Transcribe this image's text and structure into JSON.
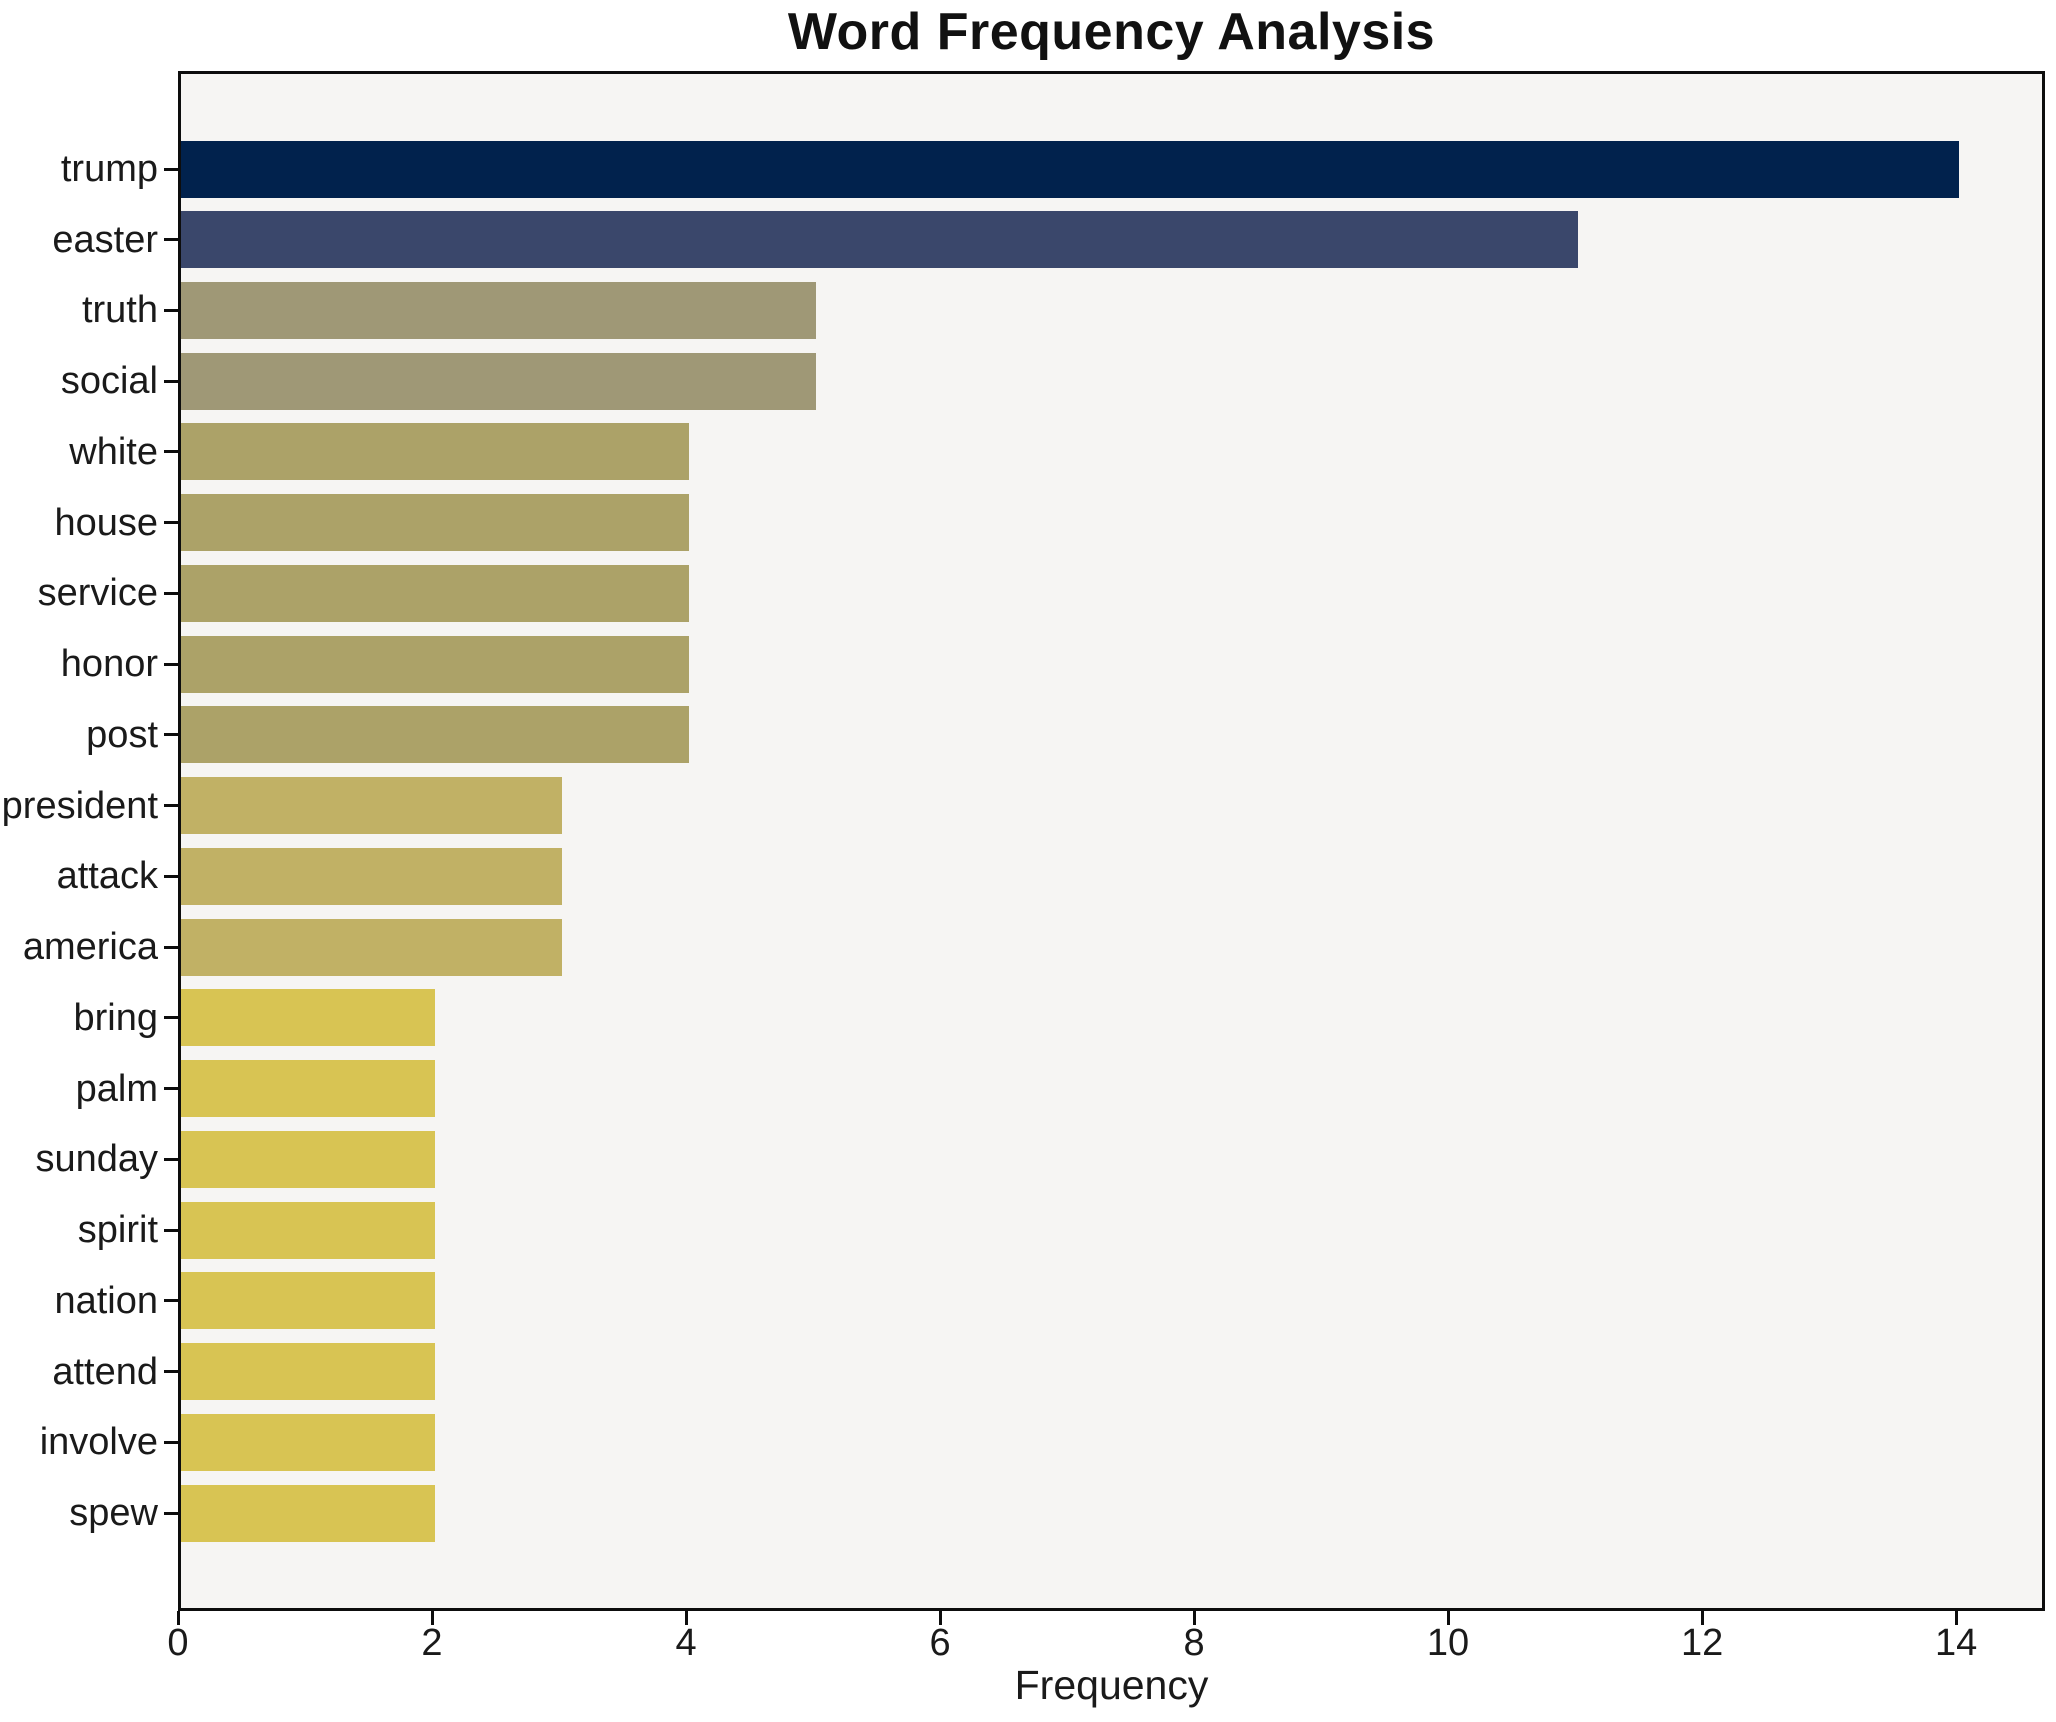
{
  "title": "Word Frequency Analysis",
  "chart_data": {
    "type": "bar",
    "orientation": "horizontal",
    "title": "Word Frequency Analysis",
    "xlabel": "Frequency",
    "ylabel": "",
    "categories": [
      "trump",
      "easter",
      "truth",
      "social",
      "white",
      "house",
      "service",
      "honor",
      "post",
      "president",
      "attack",
      "america",
      "bring",
      "palm",
      "sunday",
      "spirit",
      "nation",
      "attend",
      "involve",
      "spew"
    ],
    "values": [
      14,
      11,
      5,
      5,
      4,
      4,
      4,
      4,
      4,
      3,
      3,
      3,
      2,
      2,
      2,
      2,
      2,
      2,
      2,
      2
    ],
    "bar_colors": [
      "#01224d",
      "#3a476b",
      "#9f9876",
      "#9f9876",
      "#aca268",
      "#aca268",
      "#aca268",
      "#aca268",
      "#aca268",
      "#c1b165",
      "#c1b165",
      "#c1b165",
      "#d8c453",
      "#d8c453",
      "#d8c453",
      "#d8c453",
      "#d8c453",
      "#d8c453",
      "#d8c453",
      "#d8c453"
    ],
    "xticks": [
      0,
      2,
      4,
      6,
      8,
      10,
      12,
      14
    ],
    "xlim": [
      0,
      14.7
    ],
    "grid": false,
    "legend": "none",
    "plot_background": "#f6f5f3",
    "figure_background": "#ffffff",
    "spine_color": "#0d0d0d"
  }
}
